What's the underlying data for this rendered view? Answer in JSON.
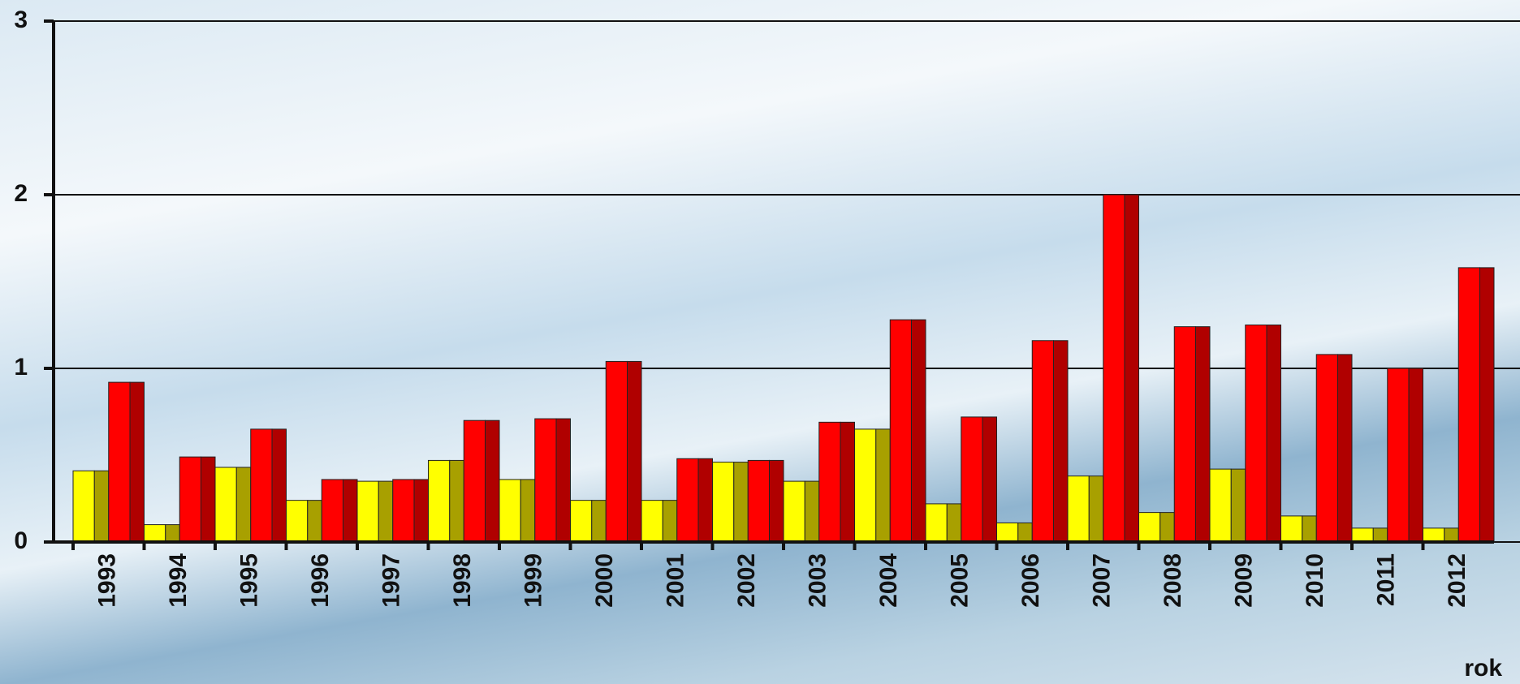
{
  "chart_data": {
    "type": "bar",
    "categories": [
      "1993",
      "1994",
      "1995",
      "1996",
      "1997",
      "1998",
      "1999",
      "2000",
      "2001",
      "2002",
      "2003",
      "2004",
      "2005",
      "2006",
      "2007",
      "2008",
      "2009",
      "2010",
      "2011",
      "2012"
    ],
    "series": [
      {
        "color": "#ffff00",
        "values": [
          0.41,
          0.1,
          0.43,
          0.24,
          0.35,
          0.47,
          0.36,
          0.24,
          0.24,
          0.46,
          0.35,
          0.65,
          0.22,
          0.11,
          0.38,
          0.17,
          0.42,
          0.15,
          0.08,
          0.08
        ]
      },
      {
        "color": "#ff0000",
        "values": [
          0.92,
          0.49,
          0.65,
          0.36,
          0.36,
          0.7,
          0.71,
          1.04,
          0.48,
          0.47,
          0.69,
          1.28,
          0.72,
          1.16,
          2.0,
          1.24,
          1.25,
          1.08,
          1.0,
          1.58
        ]
      }
    ],
    "x_label": "rok",
    "ylim": [
      0,
      3
    ],
    "yticks": [
      0,
      1,
      2,
      3
    ],
    "grid": true
  }
}
